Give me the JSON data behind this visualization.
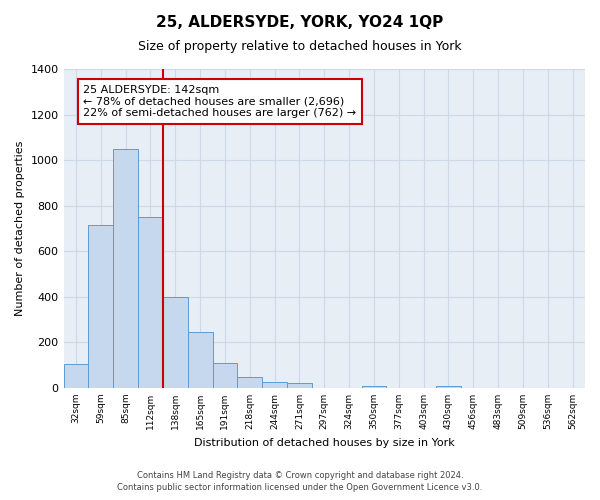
{
  "title": "25, ALDERSYDE, YORK, YO24 1QP",
  "subtitle": "Size of property relative to detached houses in York",
  "xlabel": "Distribution of detached houses by size in York",
  "ylabel": "Number of detached properties",
  "footer_line1": "Contains HM Land Registry data © Crown copyright and database right 2024.",
  "footer_line2": "Contains public sector information licensed under the Open Government Licence v3.0.",
  "bar_labels": [
    "32sqm",
    "59sqm",
    "85sqm",
    "112sqm",
    "138sqm",
    "165sqm",
    "191sqm",
    "218sqm",
    "244sqm",
    "271sqm",
    "297sqm",
    "324sqm",
    "350sqm",
    "377sqm",
    "403sqm",
    "430sqm",
    "456sqm",
    "483sqm",
    "509sqm",
    "536sqm",
    "562sqm"
  ],
  "bar_values": [
    105,
    715,
    1050,
    750,
    400,
    245,
    110,
    50,
    28,
    22,
    0,
    0,
    10,
    0,
    0,
    8,
    0,
    0,
    0,
    0,
    0
  ],
  "bar_color": "#c5d8ed",
  "bar_edge_color": "#5b9bd5",
  "highlight_index": 4,
  "highlight_color": "#cc0000",
  "annotation_title": "25 ALDERSYDE: 142sqm",
  "annotation_line1": "← 78% of detached houses are smaller (2,696)",
  "annotation_line2": "22% of semi-detached houses are larger (762) →",
  "annotation_box_color": "#ffffff",
  "annotation_box_edge_color": "#cc0000",
  "ylim": [
    0,
    1400
  ],
  "yticks": [
    0,
    200,
    400,
    600,
    800,
    1000,
    1200,
    1400
  ],
  "bg_color": "#ffffff",
  "grid_color": "#cdd8e8",
  "plot_bg_color": "#e8eef5"
}
